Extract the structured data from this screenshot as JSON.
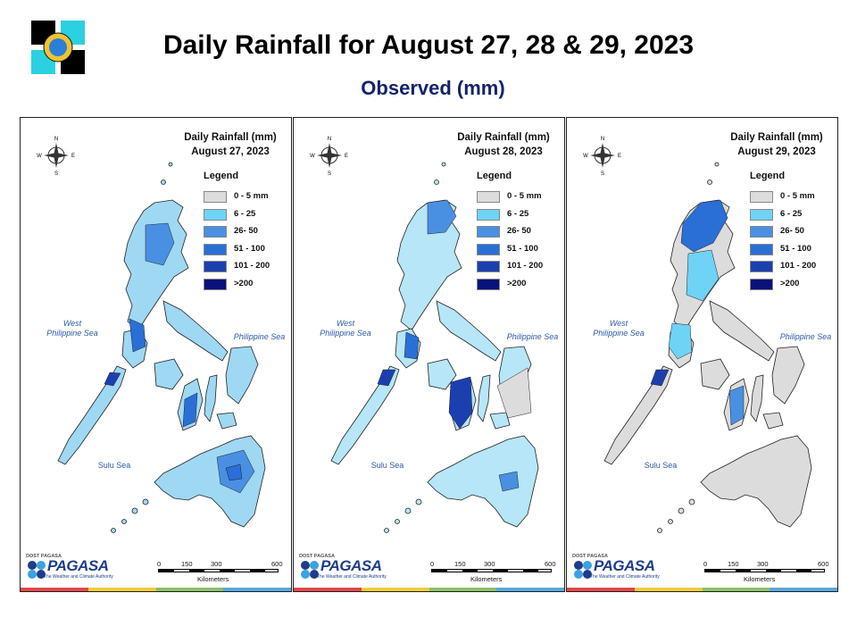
{
  "header": {
    "title": "Daily Rainfall for August 27, 28 & 29, 2023",
    "subtitle": "Observed (mm)"
  },
  "panels": [
    {
      "title": "Daily Rainfall (mm)",
      "date": "August 27, 2023"
    },
    {
      "title": "Daily Rainfall (mm)",
      "date": "August 28, 2023"
    },
    {
      "title": "Daily Rainfall (mm)",
      "date": "August 29, 2023"
    }
  ],
  "legend": {
    "title": "Legend",
    "items": [
      {
        "label": "0 - 5 mm",
        "color": "#dcdcdc"
      },
      {
        "label": "6 - 25",
        "color": "#6fd3f5"
      },
      {
        "label": "26- 50",
        "color": "#4a90e2"
      },
      {
        "label": "51 - 100",
        "color": "#2a6fd6"
      },
      {
        "label": "101 - 200",
        "color": "#1c3fb0"
      },
      {
        "label": ">200",
        "color": "#08127a"
      }
    ]
  },
  "seas": {
    "west": "West\nPhilippine Sea",
    "east": "Philippine Sea",
    "sulu": "Sulu Sea"
  },
  "scale": {
    "ticks": [
      "0",
      "150",
      "300",
      "600"
    ],
    "unit": "Kilometers"
  },
  "branding": {
    "pagasa_small": "DOST PAGASA",
    "pagasa_name": "PAGASA",
    "pagasa_tag": "The Weather and Climate Authority"
  },
  "stripe_colors": [
    "#e2474b",
    "#f2cc3a",
    "#8cc06a",
    "#5aa6dc"
  ]
}
